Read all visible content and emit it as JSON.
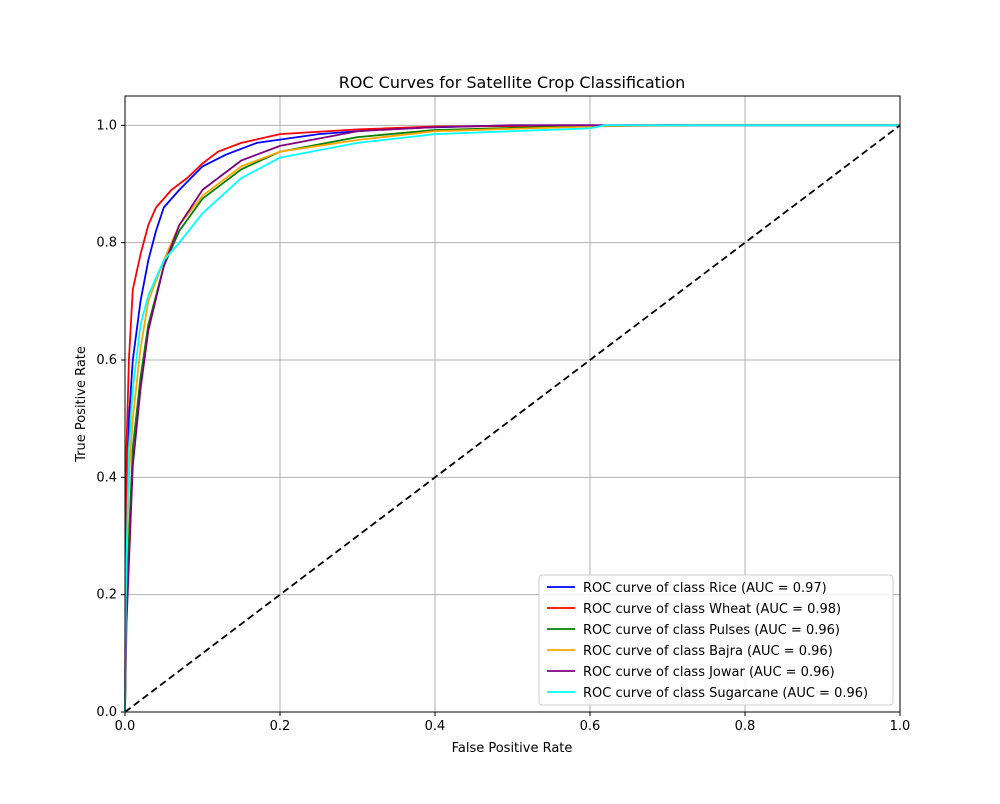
{
  "chart_data": {
    "type": "line",
    "title": "ROC Curves for Satellite Crop Classification",
    "xlabel": "False Positive Rate",
    "ylabel": "True Positive Rate",
    "xlim": [
      0,
      1.0
    ],
    "ylim": [
      0,
      1.05
    ],
    "grid": true,
    "legend_position": "lower-right",
    "xticks": [
      "0.0",
      "0.2",
      "0.4",
      "0.6",
      "0.8",
      "1.0"
    ],
    "xtick_values": [
      0,
      0.2,
      0.4,
      0.6,
      0.8,
      1.0
    ],
    "yticks": [
      "0.0",
      "0.2",
      "0.4",
      "0.6",
      "0.8",
      "1.0"
    ],
    "ytick_values": [
      0,
      0.2,
      0.4,
      0.6,
      0.8,
      1.0
    ],
    "series": [
      {
        "name": "ROC curve of class Rice (AUC = 0.97)",
        "color": "#0000ff",
        "x": [
          0,
          0.002,
          0.005,
          0.01,
          0.02,
          0.03,
          0.04,
          0.05,
          0.07,
          0.1,
          0.13,
          0.17,
          0.25,
          0.35,
          0.5,
          1
        ],
        "y": [
          0,
          0.3,
          0.5,
          0.6,
          0.7,
          0.77,
          0.82,
          0.86,
          0.89,
          0.93,
          0.95,
          0.97,
          0.985,
          0.995,
          1,
          1
        ]
      },
      {
        "name": "ROC curve of class Wheat (AUC = 0.98)",
        "color": "#ff0000",
        "x": [
          0,
          0.001,
          0.002,
          0.005,
          0.01,
          0.02,
          0.03,
          0.04,
          0.06,
          0.08,
          0.1,
          0.12,
          0.15,
          0.2,
          0.3,
          0.4,
          0.65,
          1
        ],
        "y": [
          0,
          0.3,
          0.45,
          0.6,
          0.72,
          0.78,
          0.83,
          0.86,
          0.89,
          0.91,
          0.935,
          0.955,
          0.97,
          0.985,
          0.993,
          0.998,
          1,
          1
        ]
      },
      {
        "name": "ROC curve of class Pulses (AUC = 0.96)",
        "color": "#008000",
        "x": [
          0,
          0.002,
          0.01,
          0.02,
          0.03,
          0.05,
          0.07,
          0.1,
          0.15,
          0.2,
          0.3,
          0.4,
          0.6,
          0.7,
          1
        ],
        "y": [
          0,
          0.2,
          0.45,
          0.57,
          0.66,
          0.76,
          0.82,
          0.875,
          0.925,
          0.955,
          0.98,
          0.992,
          0.999,
          1,
          1
        ]
      },
      {
        "name": "ROC curve of class Bajra (AUC = 0.96)",
        "color": "#ffa500",
        "x": [
          0,
          0.002,
          0.005,
          0.01,
          0.02,
          0.03,
          0.05,
          0.07,
          0.1,
          0.15,
          0.2,
          0.3,
          0.4,
          0.6,
          0.72,
          1
        ],
        "y": [
          0,
          0.25,
          0.4,
          0.5,
          0.62,
          0.7,
          0.77,
          0.83,
          0.88,
          0.93,
          0.955,
          0.975,
          0.99,
          0.998,
          1,
          1
        ]
      },
      {
        "name": "ROC curve of class Jowar (AUC = 0.96)",
        "color": "#800080",
        "x": [
          0,
          0.002,
          0.01,
          0.02,
          0.03,
          0.05,
          0.07,
          0.1,
          0.15,
          0.2,
          0.3,
          0.4,
          0.5,
          1
        ],
        "y": [
          0,
          0.15,
          0.42,
          0.55,
          0.65,
          0.76,
          0.83,
          0.89,
          0.94,
          0.965,
          0.99,
          0.997,
          1,
          1
        ]
      },
      {
        "name": "ROC curve of class Sugarcane (AUC = 0.96)",
        "color": "#00ffff",
        "x": [
          0,
          0.001,
          0.005,
          0.01,
          0.02,
          0.03,
          0.05,
          0.07,
          0.1,
          0.15,
          0.2,
          0.3,
          0.4,
          0.6,
          0.62,
          1
        ],
        "y": [
          0,
          0.2,
          0.45,
          0.55,
          0.66,
          0.71,
          0.77,
          0.8,
          0.85,
          0.91,
          0.945,
          0.97,
          0.985,
          0.995,
          1,
          1
        ]
      }
    ],
    "diagonal": {
      "x": [
        0,
        1
      ],
      "y": [
        0,
        1
      ],
      "color": "#000000",
      "style": "dashed"
    }
  }
}
